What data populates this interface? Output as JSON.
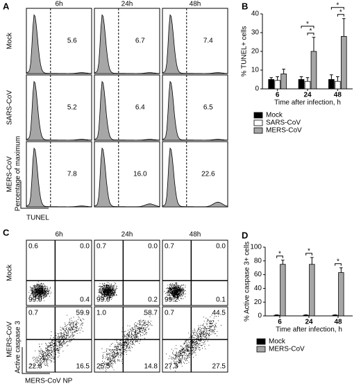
{
  "chart_data": [
    {
      "type": "histogram-grid",
      "panel_label": "A",
      "columns": [
        "6h",
        "24h",
        "48h"
      ],
      "rows": [
        "Mock",
        "SARS-CoV",
        "MERS-CoV"
      ],
      "values": [
        [
          5.6,
          6.7,
          7.4
        ],
        [
          5.2,
          6.4,
          6.5
        ],
        [
          7.8,
          16.0,
          22.6
        ]
      ],
      "value_labels": [
        [
          "5.6",
          "6.7",
          "7.4"
        ],
        [
          "5.2",
          "6.4",
          "6.5"
        ],
        [
          "7.8",
          "16.0",
          "22.6"
        ]
      ],
      "xlabel": "TUNEL",
      "ylabel": "Percentage of maximum"
    },
    {
      "type": "bar",
      "panel_label": "B",
      "categories": [
        "6",
        "24",
        "48"
      ],
      "series": [
        {
          "name": "Mock",
          "color": "#000000",
          "values": [
            5,
            5,
            5
          ],
          "errors": [
            1,
            1.5,
            2.5
          ]
        },
        {
          "name": "SARS-CoV",
          "color": "#ffffff",
          "values": [
            4.5,
            4,
            4
          ],
          "errors": [
            2,
            2,
            2.5
          ]
        },
        {
          "name": "MERS-CoV",
          "color": "#a6a6a6",
          "values": [
            8,
            20,
            28
          ],
          "errors": [
            2.5,
            7.5,
            9.5
          ]
        }
      ],
      "ylim": [
        0,
        40
      ],
      "yticks": [
        0,
        10,
        20,
        30,
        40
      ],
      "ylabel": "% TUNEL+ cells",
      "xlabel": "Time after infection, h",
      "annotations": [
        "*",
        "*",
        "*",
        "*"
      ]
    },
    {
      "type": "quadrant-grid",
      "panel_label": "C",
      "columns": [
        "6h",
        "24h",
        "48h"
      ],
      "rows": [
        "Mock",
        "MERS-CoV"
      ],
      "values": [
        [
          [
            0.6,
            0.0,
            99.0,
            0.4
          ],
          [
            0.7,
            0.0,
            99.0,
            0.2
          ],
          [
            0.7,
            0.0,
            99.2,
            0.1
          ]
        ],
        [
          [
            0.7,
            59.9,
            22.8,
            16.5
          ],
          [
            1.0,
            58.7,
            25.5,
            14.8
          ],
          [
            0.7,
            44.5,
            27.3,
            27.5
          ]
        ]
      ],
      "value_labels": [
        [
          [
            "0.6",
            "0.0",
            "99.0",
            "0.4"
          ],
          [
            "0.7",
            "0.0",
            "99.0",
            "0.2"
          ],
          [
            "0.7",
            "0.0",
            "99.2",
            "0.1"
          ]
        ],
        [
          [
            "0.7",
            "59.9",
            "22.8",
            "16.5"
          ],
          [
            "1.0",
            "58.7",
            "25.5",
            "14.8"
          ],
          [
            "0.7",
            "44.5",
            "27.3",
            "27.5"
          ]
        ]
      ],
      "xlabel": "MERS-CoV NP",
      "ylabel": "Active caspase 3"
    },
    {
      "type": "bar",
      "panel_label": "D",
      "categories": [
        "6",
        "24",
        "48"
      ],
      "series": [
        {
          "name": "Mock",
          "color": "#000000",
          "values": [
            1,
            1,
            1
          ],
          "errors": [
            0.5,
            0.5,
            0.5
          ]
        },
        {
          "name": "MERS-CoV",
          "color": "#a6a6a6",
          "values": [
            75,
            75,
            63
          ],
          "errors": [
            6,
            10,
            7
          ]
        }
      ],
      "ylim": [
        0,
        100
      ],
      "yticks": [
        0,
        20,
        40,
        60,
        80,
        100
      ],
      "ylabel": "% Active caspase 3+ cells",
      "xlabel": "Time after infection, h",
      "annotations": [
        "*",
        "*",
        "*"
      ]
    }
  ]
}
